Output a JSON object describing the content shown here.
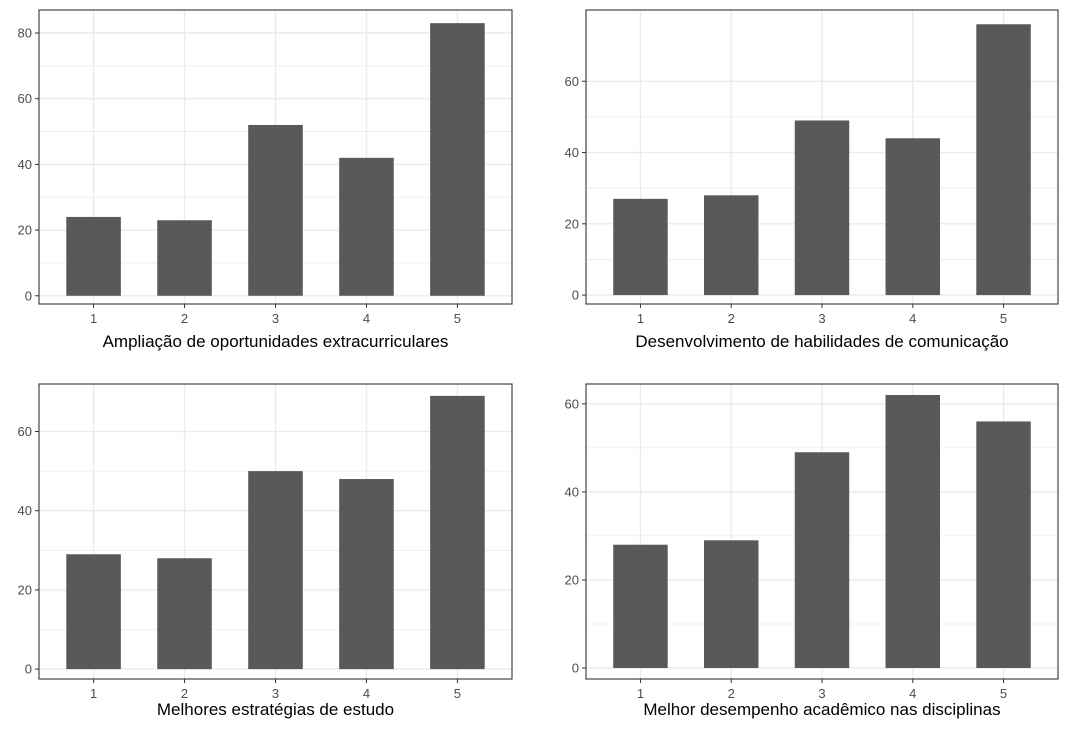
{
  "colors": {
    "bar": "#595959",
    "grid": "#ebebeb",
    "panel_border": "#333333",
    "tick_text": "#4d4d4d"
  },
  "chart_data": [
    {
      "type": "bar",
      "title": "",
      "xlabel": "Ampliação de oportunidades extracurriculares",
      "ylabel": "",
      "categories": [
        "1",
        "2",
        "3",
        "4",
        "5"
      ],
      "values": [
        24,
        23,
        52,
        42,
        83
      ],
      "yticks": [
        0,
        20,
        40,
        60,
        80
      ],
      "ylim": [
        -2.5,
        87
      ],
      "grid": true
    },
    {
      "type": "bar",
      "title": "",
      "xlabel": "Desenvolvimento de habilidades de comunicação",
      "ylabel": "",
      "categories": [
        "1",
        "2",
        "3",
        "4",
        "5"
      ],
      "values": [
        27,
        28,
        49,
        44,
        76
      ],
      "yticks": [
        0,
        20,
        40,
        60
      ],
      "ylim": [
        -2.5,
        80
      ],
      "grid": true
    },
    {
      "type": "bar",
      "title": "",
      "xlabel": "Melhores estratégias de estudo",
      "ylabel": "",
      "categories": [
        "1",
        "2",
        "3",
        "4",
        "5"
      ],
      "values": [
        29,
        28,
        50,
        48,
        69
      ],
      "yticks": [
        0,
        20,
        40,
        60
      ],
      "ylim": [
        -2.5,
        72
      ],
      "grid": true
    },
    {
      "type": "bar",
      "title": "",
      "xlabel": "Melhor desempenho acadêmico nas disciplinas",
      "ylabel": "",
      "categories": [
        "1",
        "2",
        "3",
        "4",
        "5"
      ],
      "values": [
        28,
        29,
        49,
        62,
        56
      ],
      "yticks": [
        0,
        20,
        40,
        60
      ],
      "ylim": [
        -2.5,
        64.5
      ],
      "grid": true
    }
  ]
}
